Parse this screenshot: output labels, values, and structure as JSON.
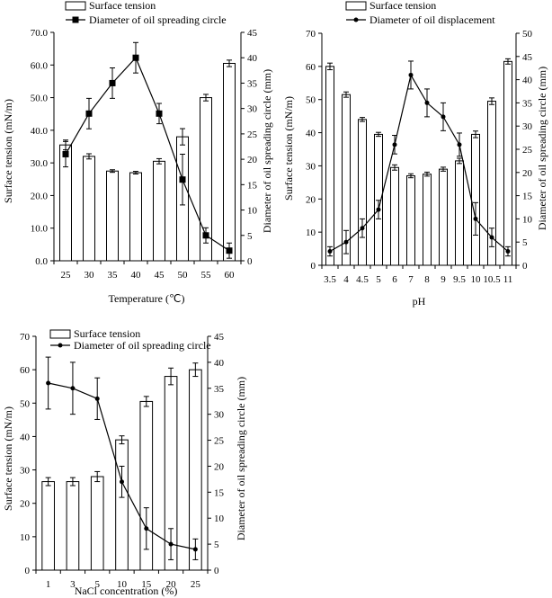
{
  "chart_data": [
    {
      "type": "bar+line",
      "xlabel": "Temperature (℃)",
      "ylabel_left": "Surface tension (mN/m)",
      "ylabel_right": "Diameter of oil spreading circle (mm)",
      "legend_bar": "Surface tension",
      "legend_line": "Diameter of oil spreading circle",
      "categories": [
        "25",
        "30",
        "35",
        "40",
        "45",
        "50",
        "55",
        "60"
      ],
      "bar_values": [
        35.5,
        32.0,
        27.5,
        27.0,
        30.5,
        38.0,
        50.0,
        60.5
      ],
      "bar_errors": [
        1.5,
        0.8,
        0.4,
        0.4,
        0.8,
        2.5,
        1.0,
        1.0
      ],
      "line_values": [
        21,
        29,
        35,
        40,
        29,
        16,
        5,
        2
      ],
      "line_errors": [
        2.5,
        3,
        3,
        3,
        2,
        5,
        1.5,
        1.5
      ],
      "ylim_left": [
        0,
        70
      ],
      "ylim_right": [
        0,
        45
      ],
      "yticks_left": [
        "0.0",
        "10.0",
        "20.0",
        "30.0",
        "40.0",
        "50.0",
        "60.0",
        "70.0"
      ],
      "yticks_right": [
        "0",
        "5",
        "10",
        "15",
        "20",
        "25",
        "30",
        "35",
        "40",
        "45"
      ],
      "marker": "square"
    },
    {
      "type": "bar+line",
      "xlabel": "pH",
      "ylabel_left": "Surface tension (mN/m)",
      "ylabel_right": "Diameter of oil spreading circle (mm)",
      "legend_bar": "Surface tension",
      "legend_line": "Diameter of oil displacement",
      "categories": [
        "3.5",
        "4",
        "4.5",
        "5",
        "6",
        "7",
        "8",
        "9",
        "9.5",
        "10",
        "10.5",
        "11"
      ],
      "bar_values": [
        60,
        51.5,
        44,
        39.5,
        29.5,
        27,
        27.5,
        29,
        31.5,
        39.5,
        49.5,
        61.5
      ],
      "bar_errors": [
        1,
        0.8,
        0.6,
        0.6,
        0.8,
        0.6,
        0.6,
        0.6,
        0.8,
        1,
        1,
        0.8
      ],
      "line_values": [
        3,
        5,
        8,
        12,
        26,
        41,
        35,
        32,
        26,
        10,
        6,
        3
      ],
      "line_errors": [
        1,
        2.5,
        2,
        2,
        2,
        3,
        3,
        3,
        2.5,
        3.5,
        2,
        1
      ],
      "ylim_left": [
        0,
        70
      ],
      "ylim_right": [
        0,
        50
      ],
      "yticks_left": [
        "0",
        "10",
        "20",
        "30",
        "40",
        "50",
        "60",
        "70"
      ],
      "yticks_right": [
        "0",
        "5",
        "10",
        "15",
        "20",
        "25",
        "30",
        "35",
        "40",
        "45",
        "50"
      ],
      "marker": "dot"
    },
    {
      "type": "bar+line",
      "xlabel": "NaCl concentration (%)",
      "ylabel_left": "Surface tension (mN/m)",
      "ylabel_right": "Diameter of oil spreading circle (mm)",
      "legend_bar": "Surface tension",
      "legend_line": "Diameter of oil spreading circle",
      "categories": [
        "1",
        "3",
        "5",
        "10",
        "15",
        "20",
        "25"
      ],
      "bar_values": [
        26.5,
        26.5,
        28,
        39,
        50.5,
        58,
        60
      ],
      "bar_errors": [
        1.2,
        1.2,
        1.5,
        1.2,
        1.5,
        2.5,
        2
      ],
      "line_values": [
        36,
        35,
        33,
        17,
        8,
        5,
        4
      ],
      "line_errors": [
        5,
        5,
        4,
        3,
        4,
        3,
        2
      ],
      "ylim_left": [
        0,
        70
      ],
      "ylim_right": [
        0,
        45
      ],
      "yticks_left": [
        "0",
        "10",
        "20",
        "30",
        "40",
        "50",
        "60",
        "70"
      ],
      "yticks_right": [
        "0",
        "5",
        "10",
        "15",
        "20",
        "25",
        "30",
        "35",
        "40",
        "45"
      ],
      "marker": "dot"
    }
  ]
}
